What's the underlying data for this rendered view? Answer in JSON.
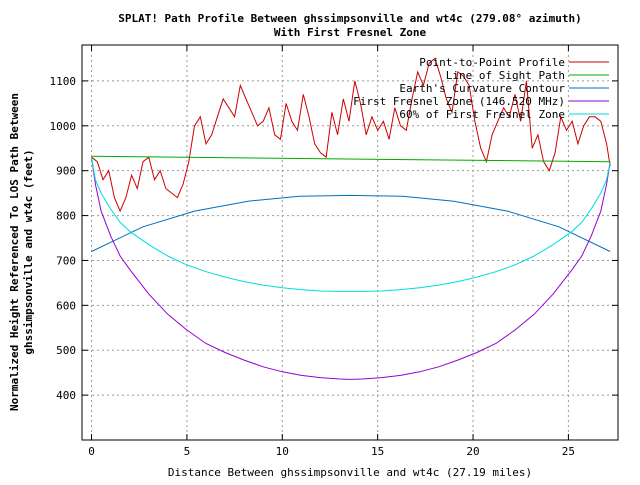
{
  "chart_data": {
    "type": "line",
    "title": "SPLAT! Path Profile Between ghssimpsonville and wt4c (279.08° azimuth)",
    "subtitle": "With First Fresnel Zone",
    "xlabel": "Distance Between ghssimpsonville and wt4c (27.19 miles)",
    "ylabel_line1": "Normalized Height Referenced To LOS Path Between",
    "ylabel_line2": "ghssimpsonville and wt4c (feet)",
    "xlim": [
      -0.5,
      27.6
    ],
    "ylim": [
      300,
      1180
    ],
    "x_ticks": [
      0,
      5,
      10,
      15,
      20,
      25
    ],
    "y_ticks": [
      400,
      500,
      600,
      700,
      800,
      900,
      1000,
      1100
    ],
    "grid": true,
    "legend_position": "top-right",
    "series": [
      {
        "name": "Point-to-Point Profile",
        "color": "#cc0000",
        "x": [
          0.0,
          0.3,
          0.6,
          0.9,
          1.2,
          1.5,
          1.8,
          2.1,
          2.4,
          2.7,
          3.0,
          3.3,
          3.6,
          3.9,
          4.2,
          4.5,
          4.8,
          5.1,
          5.4,
          5.7,
          6.0,
          6.3,
          6.6,
          6.9,
          7.2,
          7.5,
          7.8,
          8.1,
          8.4,
          8.7,
          9.0,
          9.3,
          9.6,
          9.9,
          10.2,
          10.5,
          10.8,
          11.1,
          11.4,
          11.7,
          12.0,
          12.3,
          12.6,
          12.9,
          13.2,
          13.5,
          13.8,
          14.1,
          14.4,
          14.7,
          15.0,
          15.3,
          15.6,
          15.9,
          16.2,
          16.5,
          16.8,
          17.1,
          17.4,
          17.7,
          18.0,
          18.3,
          18.6,
          18.9,
          19.2,
          19.5,
          19.8,
          20.1,
          20.4,
          20.7,
          21.0,
          21.3,
          21.6,
          21.9,
          22.2,
          22.5,
          22.8,
          23.1,
          23.4,
          23.7,
          24.0,
          24.3,
          24.6,
          24.9,
          25.2,
          25.5,
          25.8,
          26.1,
          26.4,
          26.7,
          27.0,
          27.19
        ],
        "y": [
          930,
          920,
          880,
          900,
          840,
          810,
          840,
          890,
          860,
          920,
          930,
          880,
          900,
          860,
          850,
          840,
          870,
          920,
          1000,
          1020,
          960,
          980,
          1020,
          1060,
          1040,
          1020,
          1090,
          1060,
          1030,
          1000,
          1010,
          1040,
          980,
          970,
          1050,
          1010,
          990,
          1070,
          1020,
          960,
          940,
          930,
          1030,
          980,
          1060,
          1010,
          1100,
          1050,
          980,
          1020,
          990,
          1010,
          970,
          1040,
          1000,
          990,
          1060,
          1120,
          1090,
          1140,
          1150,
          1110,
          1060,
          1030,
          1120,
          1110,
          1090,
          1010,
          950,
          920,
          980,
          1010,
          1040,
          1020,
          1070,
          1010,
          1100,
          950,
          980,
          920,
          900,
          940,
          1020,
          990,
          1010,
          960,
          1000,
          1020,
          1020,
          1010,
          960,
          910
        ]
      },
      {
        "name": "Line of Sight Path",
        "color": "#00aa00",
        "x": [
          0.0,
          27.19
        ],
        "y": [
          932,
          920
        ]
      },
      {
        "name": "Earth's Curvature Contour",
        "color": "#0070c0",
        "x": [
          0.0,
          2.7,
          5.4,
          8.2,
          10.9,
          13.6,
          16.3,
          19.0,
          21.8,
          24.5,
          27.19
        ],
        "y": [
          720,
          775,
          810,
          832,
          843,
          845,
          843,
          832,
          810,
          775,
          720
        ]
      },
      {
        "name": "First Fresnel Zone (146.520 MHz)",
        "color": "#9400d3",
        "x": [
          0.0,
          0.2,
          0.5,
          1.0,
          1.5,
          2.0,
          3.0,
          4.0,
          5.0,
          6.0,
          7.0,
          8.0,
          9.0,
          10.0,
          11.0,
          12.0,
          13.0,
          13.6,
          14.2,
          15.2,
          16.2,
          17.2,
          18.2,
          19.2,
          20.2,
          21.2,
          22.2,
          23.2,
          24.2,
          25.2,
          25.7,
          26.2,
          26.7,
          27.0,
          27.19
        ],
        "y": [
          930,
          870,
          810,
          755,
          710,
          680,
          625,
          580,
          545,
          515,
          495,
          478,
          463,
          452,
          444,
          439,
          436,
          435,
          436,
          439,
          444,
          452,
          463,
          478,
          495,
          515,
          545,
          580,
          625,
          680,
          710,
          755,
          810,
          870,
          920
        ]
      },
      {
        "name": "60% of First Fresnel Zone",
        "color": "#00dddd",
        "x": [
          0.0,
          0.2,
          0.5,
          1.0,
          1.5,
          2.0,
          3.0,
          4.0,
          5.0,
          6.0,
          7.0,
          8.0,
          9.0,
          10.0,
          11.0,
          12.0,
          13.0,
          13.6,
          14.2,
          15.2,
          16.2,
          17.2,
          18.2,
          19.2,
          20.2,
          21.2,
          22.2,
          23.2,
          24.2,
          25.2,
          25.7,
          26.2,
          26.7,
          27.0,
          27.19
        ],
        "y": [
          930,
          880,
          850,
          815,
          785,
          765,
          735,
          710,
          690,
          675,
          663,
          653,
          645,
          639,
          635,
          632,
          631,
          631,
          631,
          632,
          635,
          639,
          645,
          653,
          663,
          675,
          690,
          710,
          735,
          765,
          785,
          815,
          850,
          880,
          920
        ]
      }
    ]
  }
}
